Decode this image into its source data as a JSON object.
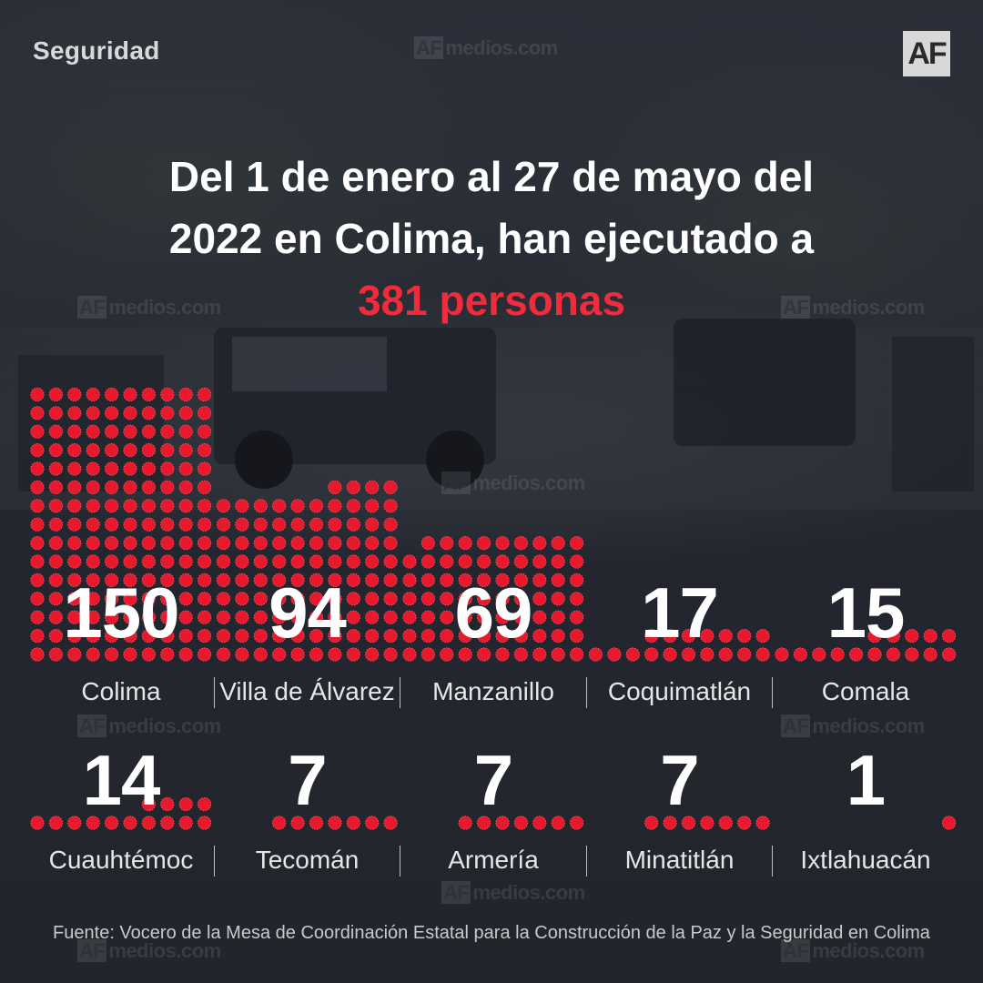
{
  "header": {
    "section": "Seguridad",
    "logo": "AF",
    "watermark_af": "AF",
    "watermark_text": "medios.com"
  },
  "headline": {
    "line1": "Del 1 de enero al 27 de mayo del",
    "line2": "2022 en Colima, han ejecutado a",
    "highlight": "381 personas"
  },
  "colors": {
    "accent": "#ef2b3c",
    "dot_fill": "#e8192c",
    "background": "#262a34"
  },
  "chart_data": {
    "type": "bar",
    "title": "Del 1 de enero al 27 de mayo del 2022 en Colima, han ejecutado a 381 personas",
    "categories": [
      "Colima",
      "Villa de Álvarez",
      "Manzanillo",
      "Coquimatlán",
      "Comala",
      "Cuauhtémoc",
      "Tecomán",
      "Armería",
      "Minatitlán",
      "Ixtlahuacán"
    ],
    "values": [
      150,
      94,
      69,
      17,
      15,
      14,
      7,
      7,
      7,
      1
    ],
    "value_labels": [
      "150",
      "94",
      "69",
      "17",
      "15",
      "14",
      "7",
      "7",
      "7",
      "1"
    ],
    "total": 381,
    "encoding": "one dot per person"
  },
  "source": "Fuente: Vocero de la Mesa de Coordinación Estatal para la Construcción de la Paz y la Seguridad en Colima"
}
